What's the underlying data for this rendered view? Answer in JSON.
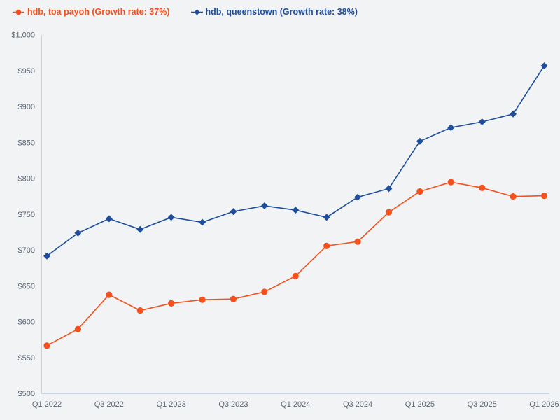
{
  "background_color": "#f1f3f5",
  "legend": {
    "items": [
      {
        "label": "hdb, toa payoh (Growth rate: 37%)",
        "color": "#f4511e",
        "marker": "circle"
      },
      {
        "label": "hdb, queenstown (Growth rate: 38%)",
        "color": "#1e4e9b",
        "marker": "diamond"
      }
    ]
  },
  "axis": {
    "line_color": "#c7d4e8",
    "tick_label_color": "#5b6470"
  },
  "chart_data": {
    "type": "line",
    "title": "",
    "xlabel": "",
    "ylabel": "",
    "grid": false,
    "legend_position": "top-left",
    "x": [
      "Q1 2022",
      "Q2 2022",
      "Q3 2022",
      "Q4 2022",
      "Q1 2023",
      "Q2 2023",
      "Q3 2023",
      "Q4 2023",
      "Q1 2024",
      "Q2 2024",
      "Q3 2024",
      "Q4 2024",
      "Q1 2025",
      "Q2 2025",
      "Q3 2025",
      "Q4 2025",
      "Q1 2026"
    ],
    "x_tick_labels": [
      "Q1 2022",
      "Q3 2022",
      "Q1 2023",
      "Q3 2023",
      "Q1 2024",
      "Q3 2024",
      "Q1 2025",
      "Q3 2025",
      "Q1 2026"
    ],
    "x_label_every": 2,
    "ylim": [
      500,
      1000
    ],
    "y_ticks": [
      500,
      550,
      600,
      650,
      700,
      750,
      800,
      850,
      900,
      950,
      1000
    ],
    "y_tick_prefix": "$",
    "series": [
      {
        "name": "hdb, toa payoh",
        "growth_rate": "37%",
        "color": "#f4511e",
        "marker": "circle",
        "values": [
          567,
          590,
          638,
          616,
          626,
          631,
          632,
          642,
          664,
          706,
          712,
          753,
          782,
          795,
          787,
          775,
          776
        ]
      },
      {
        "name": "hdb, queenstown",
        "growth_rate": "38%",
        "color": "#1e4e9b",
        "marker": "diamond",
        "values": [
          692,
          724,
          744,
          729,
          746,
          739,
          754,
          762,
          756,
          746,
          774,
          786,
          852,
          871,
          879,
          890,
          957
        ]
      }
    ]
  }
}
